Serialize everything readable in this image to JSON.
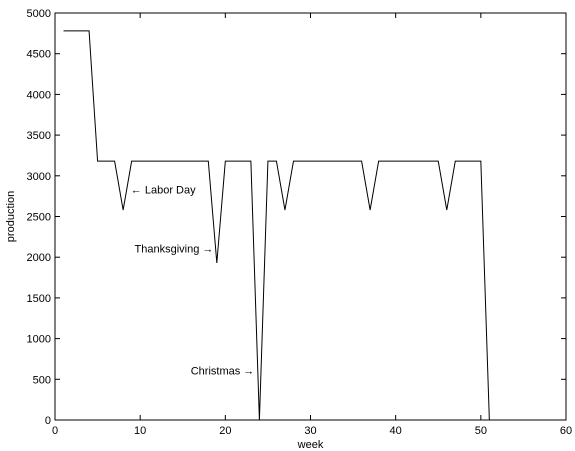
{
  "chart_data": {
    "type": "line",
    "title": "",
    "xlabel": "week",
    "ylabel": "production",
    "xlim": [
      0,
      60
    ],
    "ylim": [
      0,
      5000
    ],
    "xticks": [
      0,
      10,
      20,
      30,
      40,
      50,
      60
    ],
    "yticks": [
      0,
      500,
      1000,
      1500,
      2000,
      2500,
      3000,
      3500,
      4000,
      4500,
      5000
    ],
    "grid": false,
    "line_color": "#000000",
    "series": [
      {
        "x": [
          1,
          2,
          3,
          4,
          5,
          6,
          7,
          8,
          9,
          10,
          11,
          12,
          13,
          14,
          15,
          16,
          17,
          18,
          19,
          20,
          21,
          22,
          23,
          24,
          25,
          26,
          27,
          28,
          29,
          30,
          31,
          32,
          33,
          34,
          35,
          36,
          37,
          38,
          39,
          40,
          41,
          42,
          43,
          44,
          45,
          46,
          47,
          48,
          49,
          50,
          51
        ],
        "y": [
          4780,
          4780,
          4780,
          4780,
          3180,
          3180,
          3180,
          2580,
          3180,
          3180,
          3180,
          3180,
          3180,
          3180,
          3180,
          3180,
          3180,
          3180,
          1930,
          3180,
          3180,
          3180,
          3180,
          0,
          3180,
          3180,
          2580,
          3180,
          3180,
          3180,
          3180,
          3180,
          3180,
          3180,
          3180,
          3180,
          2580,
          3180,
          3180,
          3180,
          3180,
          3180,
          3180,
          3180,
          3180,
          2580,
          3180,
          3180,
          3180,
          3180,
          0
        ]
      }
    ],
    "annotations": [
      {
        "id": "labor-day",
        "text": "← Labor Day",
        "x": 8.9,
        "y": 2780,
        "anchor": "start"
      },
      {
        "id": "thanksgiving",
        "text": "Thanksgiving →",
        "x": 18.6,
        "y": 2060,
        "anchor": "end"
      },
      {
        "id": "christmas",
        "text": "Christmas →",
        "x": 23.4,
        "y": 560,
        "anchor": "end"
      }
    ]
  }
}
